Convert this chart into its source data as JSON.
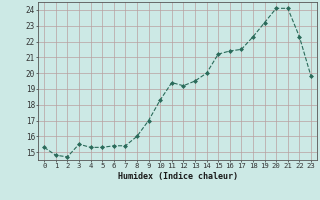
{
  "x": [
    0,
    1,
    2,
    3,
    4,
    5,
    6,
    7,
    8,
    9,
    10,
    11,
    12,
    13,
    14,
    15,
    16,
    17,
    18,
    19,
    20,
    21,
    22,
    23
  ],
  "y": [
    15.3,
    14.8,
    14.7,
    15.5,
    15.3,
    15.3,
    15.4,
    15.4,
    16.0,
    17.0,
    18.3,
    19.4,
    19.2,
    19.5,
    20.0,
    21.2,
    21.4,
    21.5,
    22.3,
    23.2,
    24.1,
    24.1,
    22.3,
    19.8
  ],
  "xlabel": "Humidex (Indice chaleur)",
  "xlim": [
    -0.5,
    23.5
  ],
  "ylim": [
    14.5,
    24.5
  ],
  "yticks": [
    15,
    16,
    17,
    18,
    19,
    20,
    21,
    22,
    23,
    24
  ],
  "xtick_labels": [
    "0",
    "1",
    "2",
    "3",
    "4",
    "5",
    "6",
    "7",
    "8",
    "9",
    "10",
    "11",
    "12",
    "13",
    "14",
    "15",
    "16",
    "17",
    "18",
    "19",
    "20",
    "21",
    "22",
    "23"
  ],
  "bg_color": "#cce9e5",
  "grid_color": "#b8a0a0",
  "line_color": "#2a6b5a",
  "marker_color": "#2a6b5a"
}
